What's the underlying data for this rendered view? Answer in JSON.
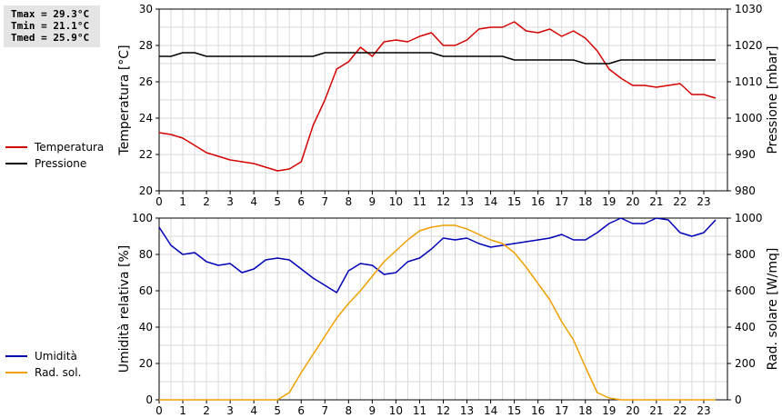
{
  "stats": {
    "tmax": "Tmax = 29.3°C",
    "tmin": "Tmin = 21.1°C",
    "tmed": "Tmed = 25.9°C"
  },
  "legend_top": [
    {
      "label": "Temperatura",
      "color": "#d40000"
    },
    {
      "label": "Pressione",
      "color": "#000000"
    }
  ],
  "legend_bottom": [
    {
      "label": "Umidità",
      "color": "#0000b8"
    },
    {
      "label": "Rad. sol.",
      "color": "#f0a000"
    }
  ],
  "chart_data": [
    {
      "type": "line",
      "xlabel": "",
      "ylabel": "Temperatura [°C]",
      "y2label": "Pressione [mbar]",
      "xlim": [
        0,
        24
      ],
      "xticks": [
        "0",
        "1",
        "2",
        "3",
        "4",
        "5",
        "6",
        "7",
        "8",
        "9",
        "10",
        "11",
        "12",
        "13",
        "14",
        "15",
        "16",
        "17",
        "18",
        "19",
        "20",
        "21",
        "22",
        "23"
      ],
      "ylim": [
        20,
        30
      ],
      "yticks": [
        20,
        22,
        24,
        26,
        28,
        30
      ],
      "y2lim": [
        980,
        1030
      ],
      "y2ticks": [
        980,
        990,
        1000,
        1010,
        1020,
        1030
      ],
      "grid": true,
      "legend": "left",
      "series": [
        {
          "name": "Temperatura",
          "axis": "left",
          "color": "#d40000",
          "x": [
            0,
            0.5,
            1,
            1.5,
            2,
            2.5,
            3,
            3.5,
            4,
            4.5,
            5,
            5.5,
            6,
            6.5,
            7,
            7.5,
            8,
            8.5,
            9,
            9.5,
            10,
            10.5,
            11,
            11.5,
            12,
            12.5,
            13,
            13.5,
            14,
            14.5,
            15,
            15.5,
            16,
            16.5,
            17,
            17.5,
            18,
            18.5,
            19,
            19.5,
            20,
            20.5,
            21,
            21.5,
            22,
            22.5,
            23,
            23.5
          ],
          "values": [
            23.2,
            23.1,
            22.9,
            22.5,
            22.1,
            21.9,
            21.7,
            21.6,
            21.5,
            21.3,
            21.1,
            21.2,
            21.6,
            23.6,
            25.0,
            26.7,
            27.1,
            27.9,
            27.4,
            28.2,
            28.3,
            28.2,
            28.5,
            28.7,
            28.0,
            28.0,
            28.3,
            28.9,
            29.0,
            29.0,
            29.3,
            28.8,
            28.7,
            28.9,
            28.5,
            28.8,
            28.4,
            27.7,
            26.7,
            26.2,
            25.8,
            25.8,
            25.7,
            25.8,
            25.9,
            25.3,
            25.3,
            25.1
          ]
        },
        {
          "name": "Pressione",
          "axis": "right",
          "color": "#000000",
          "x": [
            0,
            0.5,
            1,
            1.5,
            2,
            2.5,
            3,
            3.5,
            4,
            4.5,
            5,
            5.5,
            6,
            6.5,
            7,
            7.5,
            8,
            8.5,
            9,
            9.5,
            10,
            10.5,
            11,
            11.5,
            12,
            12.5,
            13,
            13.5,
            14,
            14.5,
            15,
            15.5,
            16,
            16.5,
            17,
            17.5,
            18,
            18.5,
            19,
            19.5,
            20,
            20.5,
            21,
            21.5,
            22,
            22.5,
            23,
            23.5
          ],
          "values": [
            1017,
            1017,
            1018,
            1018,
            1017,
            1017,
            1017,
            1017,
            1017,
            1017,
            1017,
            1017,
            1017,
            1017,
            1018,
            1018,
            1018,
            1018,
            1018,
            1018,
            1018,
            1018,
            1018,
            1018,
            1017,
            1017,
            1017,
            1017,
            1017,
            1017,
            1016,
            1016,
            1016,
            1016,
            1016,
            1016,
            1015,
            1015,
            1015,
            1016,
            1016,
            1016,
            1016,
            1016,
            1016,
            1016,
            1016,
            1016
          ]
        }
      ]
    },
    {
      "type": "line",
      "xlabel": "",
      "ylabel": "Umidità relativa [%]",
      "y2label": "Rad. solare [W/mq]",
      "xlim": [
        0,
        24
      ],
      "xticks": [
        "0",
        "1",
        "2",
        "3",
        "4",
        "5",
        "6",
        "7",
        "8",
        "9",
        "10",
        "11",
        "12",
        "13",
        "14",
        "15",
        "16",
        "17",
        "18",
        "19",
        "20",
        "21",
        "22",
        "23"
      ],
      "ylim": [
        0,
        100
      ],
      "yticks": [
        0,
        20,
        40,
        60,
        80,
        100
      ],
      "y2lim": [
        0,
        1000
      ],
      "y2ticks": [
        0,
        200,
        400,
        600,
        800,
        1000
      ],
      "grid": true,
      "legend": "left",
      "series": [
        {
          "name": "Umidità",
          "axis": "left",
          "color": "#0000b8",
          "x": [
            0,
            0.5,
            1,
            1.5,
            2,
            2.5,
            3,
            3.5,
            4,
            4.5,
            5,
            5.5,
            6,
            6.5,
            7,
            7.5,
            8,
            8.5,
            9,
            9.5,
            10,
            10.5,
            11,
            11.5,
            12,
            12.5,
            13,
            13.5,
            14,
            14.5,
            15,
            15.5,
            16,
            16.5,
            17,
            17.5,
            18,
            18.5,
            19,
            19.5,
            20,
            20.5,
            21,
            21.5,
            22,
            22.5,
            23,
            23.5
          ],
          "values": [
            95,
            85,
            80,
            81,
            76,
            74,
            75,
            70,
            72,
            77,
            78,
            77,
            72,
            67,
            63,
            59,
            71,
            75,
            74,
            69,
            70,
            76,
            78,
            83,
            89,
            88,
            89,
            86,
            84,
            85,
            86,
            87,
            88,
            89,
            91,
            88,
            88,
            92,
            97,
            100,
            97,
            97,
            101,
            99,
            92,
            90,
            92,
            99
          ]
        },
        {
          "name": "Rad. sol.",
          "axis": "right",
          "color": "#f0a000",
          "x": [
            0,
            0.5,
            1,
            1.5,
            2,
            2.5,
            3,
            3.5,
            4,
            4.5,
            5,
            5.5,
            6,
            6.5,
            7,
            7.5,
            8,
            8.5,
            9,
            9.5,
            10,
            10.5,
            11,
            11.5,
            12,
            12.5,
            13,
            13.5,
            14,
            14.5,
            15,
            15.5,
            16,
            16.5,
            17,
            17.5,
            18,
            18.5,
            19,
            19.5,
            20,
            20.5,
            21,
            21.5,
            22,
            22.5,
            23,
            23.5
          ],
          "values": [
            0,
            0,
            0,
            0,
            0,
            0,
            0,
            0,
            0,
            0,
            0,
            40,
            150,
            250,
            350,
            450,
            530,
            600,
            680,
            760,
            820,
            880,
            930,
            950,
            960,
            960,
            940,
            910,
            880,
            860,
            810,
            730,
            640,
            550,
            430,
            330,
            180,
            40,
            10,
            0,
            0,
            0,
            0,
            0,
            0,
            0,
            0,
            0
          ]
        }
      ]
    }
  ]
}
